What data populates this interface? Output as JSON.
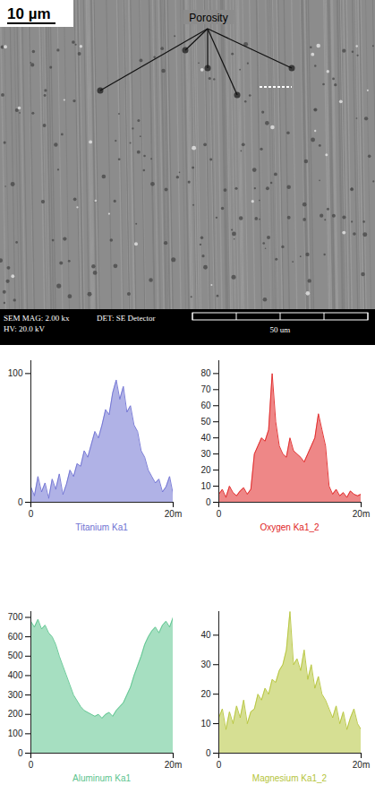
{
  "image": {
    "scale_bar": "10 µm",
    "annotation": "Porosity",
    "info_bar": {
      "mag": "SEM MAG: 2.00 kx",
      "hv": "HV: 20.0 kV",
      "detector": "DET: SE Detector",
      "scale": "50 um"
    }
  },
  "chart_data": [
    {
      "type": "area",
      "x": [
        0,
        0.5,
        1,
        1.5,
        2,
        2.5,
        3,
        3.5,
        4,
        4.5,
        5,
        5.5,
        6,
        6.5,
        7,
        7.5,
        8,
        8.5,
        9,
        9.5,
        10,
        10.5,
        11,
        11.5,
        12,
        12.5,
        13,
        13.5,
        14,
        14.5,
        15,
        15.5,
        16,
        16.5,
        17,
        17.5,
        18,
        18.5,
        19,
        19.5,
        20
      ],
      "series": [
        {
          "name": "Titanium Ka1",
          "color": "#6f72d2",
          "values": [
            12,
            5,
            20,
            8,
            15,
            3,
            18,
            10,
            22,
            6,
            14,
            25,
            20,
            30,
            28,
            40,
            35,
            45,
            55,
            50,
            60,
            72,
            68,
            85,
            95,
            80,
            90,
            70,
            75,
            60,
            55,
            40,
            35,
            25,
            20,
            15,
            18,
            8,
            12,
            20,
            6
          ]
        }
      ],
      "xlim": [
        0,
        20
      ],
      "xticks": [
        {
          "value": 0,
          "label": "0"
        },
        {
          "value": 20,
          "label": "20m"
        }
      ],
      "ylim": [
        0,
        110
      ],
      "yticks": [
        0,
        100
      ]
    },
    {
      "type": "area",
      "x": [
        0,
        0.5,
        1,
        1.5,
        2,
        2.5,
        3,
        3.5,
        4,
        4.5,
        5,
        5.5,
        6,
        6.5,
        7,
        7.5,
        8,
        8.5,
        9,
        9.5,
        10,
        10.5,
        11,
        11.5,
        12,
        12.5,
        13,
        13.5,
        14,
        14.5,
        15,
        15.5,
        16,
        16.5,
        17,
        17.5,
        18,
        18.5,
        19,
        19.5,
        20
      ],
      "series": [
        {
          "name": "Oxygen Ka1_2",
          "color": "#e02424",
          "values": [
            5,
            8,
            3,
            10,
            6,
            4,
            7,
            9,
            5,
            8,
            30,
            35,
            40,
            38,
            45,
            80,
            50,
            35,
            30,
            28,
            40,
            32,
            30,
            28,
            25,
            30,
            35,
            40,
            55,
            45,
            35,
            10,
            5,
            8,
            4,
            6,
            3,
            7,
            5,
            4,
            5
          ]
        }
      ],
      "xlim": [
        0,
        20
      ],
      "xticks": [
        {
          "value": 0,
          "label": "0"
        },
        {
          "value": 20,
          "label": "20m"
        }
      ],
      "ylim": [
        0,
        88
      ],
      "yticks": [
        0,
        10,
        20,
        30,
        40,
        50,
        60,
        70,
        80
      ]
    },
    {
      "type": "area",
      "x": [
        0,
        0.5,
        1,
        1.5,
        2,
        2.5,
        3,
        3.5,
        4,
        4.5,
        5,
        5.5,
        6,
        6.5,
        7,
        7.5,
        8,
        8.5,
        9,
        9.5,
        10,
        10.5,
        11,
        11.5,
        12,
        12.5,
        13,
        13.5,
        14,
        14.5,
        15,
        15.5,
        16,
        16.5,
        17,
        17.5,
        18,
        18.5,
        19,
        19.5,
        20
      ],
      "series": [
        {
          "name": "Aluminum Ka1",
          "color": "#5cc48e",
          "values": [
            680,
            650,
            690,
            640,
            660,
            620,
            600,
            560,
            500,
            450,
            400,
            350,
            300,
            270,
            240,
            220,
            210,
            200,
            190,
            200,
            180,
            200,
            210,
            190,
            220,
            240,
            260,
            300,
            340,
            400,
            450,
            500,
            560,
            600,
            630,
            650,
            620,
            660,
            680,
            650,
            700
          ]
        }
      ],
      "xlim": [
        0,
        20
      ],
      "xticks": [
        {
          "value": 0,
          "label": "0"
        },
        {
          "value": 20,
          "label": "20m"
        }
      ],
      "ylim": [
        0,
        730
      ],
      "yticks": [
        0,
        100,
        200,
        300,
        400,
        500,
        600,
        700
      ]
    },
    {
      "type": "area",
      "x": [
        0,
        0.5,
        1,
        1.5,
        2,
        2.5,
        3,
        3.5,
        4,
        4.5,
        5,
        5.5,
        6,
        6.5,
        7,
        7.5,
        8,
        8.5,
        9,
        9.5,
        10,
        10.5,
        11,
        11.5,
        12,
        12.5,
        13,
        13.5,
        14,
        14.5,
        15,
        15.5,
        16,
        16.5,
        17,
        17.5,
        18,
        18.5,
        19,
        19.5,
        20
      ],
      "series": [
        {
          "name": "Magnesium Ka1_2",
          "color": "#b5c43a",
          "values": [
            12,
            15,
            8,
            14,
            10,
            16,
            12,
            18,
            10,
            14,
            15,
            20,
            18,
            22,
            20,
            25,
            24,
            28,
            30,
            35,
            48,
            30,
            32,
            28,
            35,
            25,
            30,
            22,
            26,
            20,
            18,
            15,
            12,
            16,
            10,
            14,
            8,
            12,
            15,
            10,
            8
          ]
        }
      ],
      "xlim": [
        0,
        20
      ],
      "xticks": [
        {
          "value": 0,
          "label": "0"
        },
        {
          "value": 20,
          "label": "20m"
        }
      ],
      "ylim": [
        0,
        48
      ],
      "yticks": [
        0,
        10,
        20,
        30,
        40
      ]
    }
  ]
}
